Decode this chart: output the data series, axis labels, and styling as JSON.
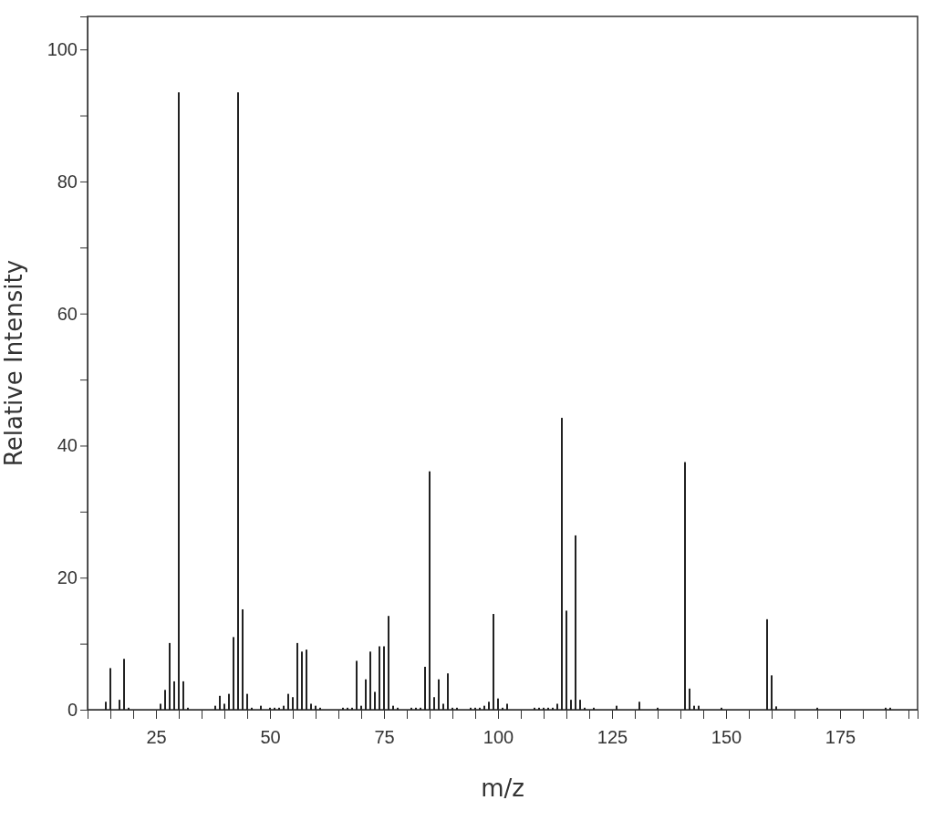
{
  "chart_data": {
    "type": "bar",
    "xlabel": "m/z",
    "ylabel": "Relative Intensity",
    "color": "#222222",
    "x": [
      14,
      15,
      17,
      18,
      19,
      26,
      27,
      28,
      29,
      30,
      31,
      32,
      38,
      39,
      40,
      41,
      42,
      43,
      44,
      45,
      46,
      48,
      50,
      51,
      52,
      53,
      54,
      55,
      56,
      57,
      58,
      59,
      60,
      61,
      66,
      67,
      68,
      69,
      70,
      71,
      72,
      73,
      74,
      75,
      76,
      77,
      78,
      81,
      82,
      83,
      84,
      85,
      86,
      87,
      88,
      89,
      90,
      91,
      94,
      95,
      96,
      97,
      98,
      99,
      100,
      101,
      102,
      108,
      109,
      110,
      111,
      112,
      113,
      114,
      115,
      116,
      117,
      118,
      119,
      121,
      126,
      131,
      135,
      141,
      142,
      143,
      144,
      149,
      159,
      160,
      161,
      170,
      185,
      186
    ],
    "values": [
      1.2,
      6.3,
      1.5,
      7.7,
      0.3,
      0.9,
      3.0,
      10.1,
      4.3,
      93.5,
      4.3,
      0.3,
      0.6,
      2.1,
      0.9,
      2.4,
      11.0,
      93.5,
      15.2,
      2.4,
      0.3,
      0.6,
      0.3,
      0.3,
      0.3,
      0.6,
      2.4,
      1.9,
      10.1,
      8.8,
      9.1,
      0.9,
      0.6,
      0.3,
      0.3,
      0.3,
      0.3,
      7.4,
      0.6,
      4.6,
      8.8,
      2.7,
      9.6,
      9.6,
      14.2,
      0.6,
      0.3,
      0.3,
      0.3,
      0.3,
      6.5,
      36.1,
      1.9,
      4.6,
      0.9,
      5.5,
      0.3,
      0.3,
      0.3,
      0.3,
      0.3,
      0.6,
      1.2,
      14.5,
      1.7,
      0.3,
      0.9,
      0.3,
      0.3,
      0.3,
      0.3,
      0.3,
      0.9,
      44.2,
      15.0,
      1.5,
      26.4,
      1.5,
      0.3,
      0.3,
      0.6,
      1.2,
      0.3,
      37.5,
      3.2,
      0.6,
      0.6,
      0.3,
      13.7,
      5.2,
      0.5,
      0.3,
      0.3,
      0.3
    ],
    "xlim": [
      10,
      192
    ],
    "xticks": [
      {
        "value": 10,
        "label": null
      },
      {
        "value": 15,
        "label": null
      },
      {
        "value": 20,
        "label": null
      },
      25,
      {
        "value": 30,
        "label": null
      },
      {
        "value": 35,
        "label": null
      },
      {
        "value": 40,
        "label": null
      },
      {
        "value": 45,
        "label": null
      },
      50,
      {
        "value": 55,
        "label": null
      },
      {
        "value": 60,
        "label": null
      },
      {
        "value": 65,
        "label": null
      },
      {
        "value": 70,
        "label": null
      },
      75,
      {
        "value": 80,
        "label": null
      },
      {
        "value": 85,
        "label": null
      },
      {
        "value": 90,
        "label": null
      },
      {
        "value": 95,
        "label": null
      },
      100,
      {
        "value": 105,
        "label": null
      },
      {
        "value": 110,
        "label": null
      },
      {
        "value": 115,
        "label": null
      },
      {
        "value": 120,
        "label": null
      },
      125,
      {
        "value": 130,
        "label": null
      },
      {
        "value": 135,
        "label": null
      },
      {
        "value": 140,
        "label": null
      },
      {
        "value": 145,
        "label": null
      },
      150,
      {
        "value": 155,
        "label": null
      },
      {
        "value": 160,
        "label": null
      },
      {
        "value": 165,
        "label": null
      },
      {
        "value": 170,
        "label": null
      },
      175,
      {
        "value": 180,
        "label": null
      },
      {
        "value": 185,
        "label": null
      },
      {
        "value": 190,
        "label": null
      }
    ],
    "ylim": [
      0,
      105
    ],
    "yticks": [
      0,
      {
        "value": 10,
        "label": null
      },
      20,
      {
        "value": 30,
        "label": null
      },
      40,
      {
        "value": 50,
        "label": null
      },
      60,
      {
        "value": 70,
        "label": null
      },
      80,
      {
        "value": 90,
        "label": null
      },
      100
    ],
    "grid": false
  }
}
